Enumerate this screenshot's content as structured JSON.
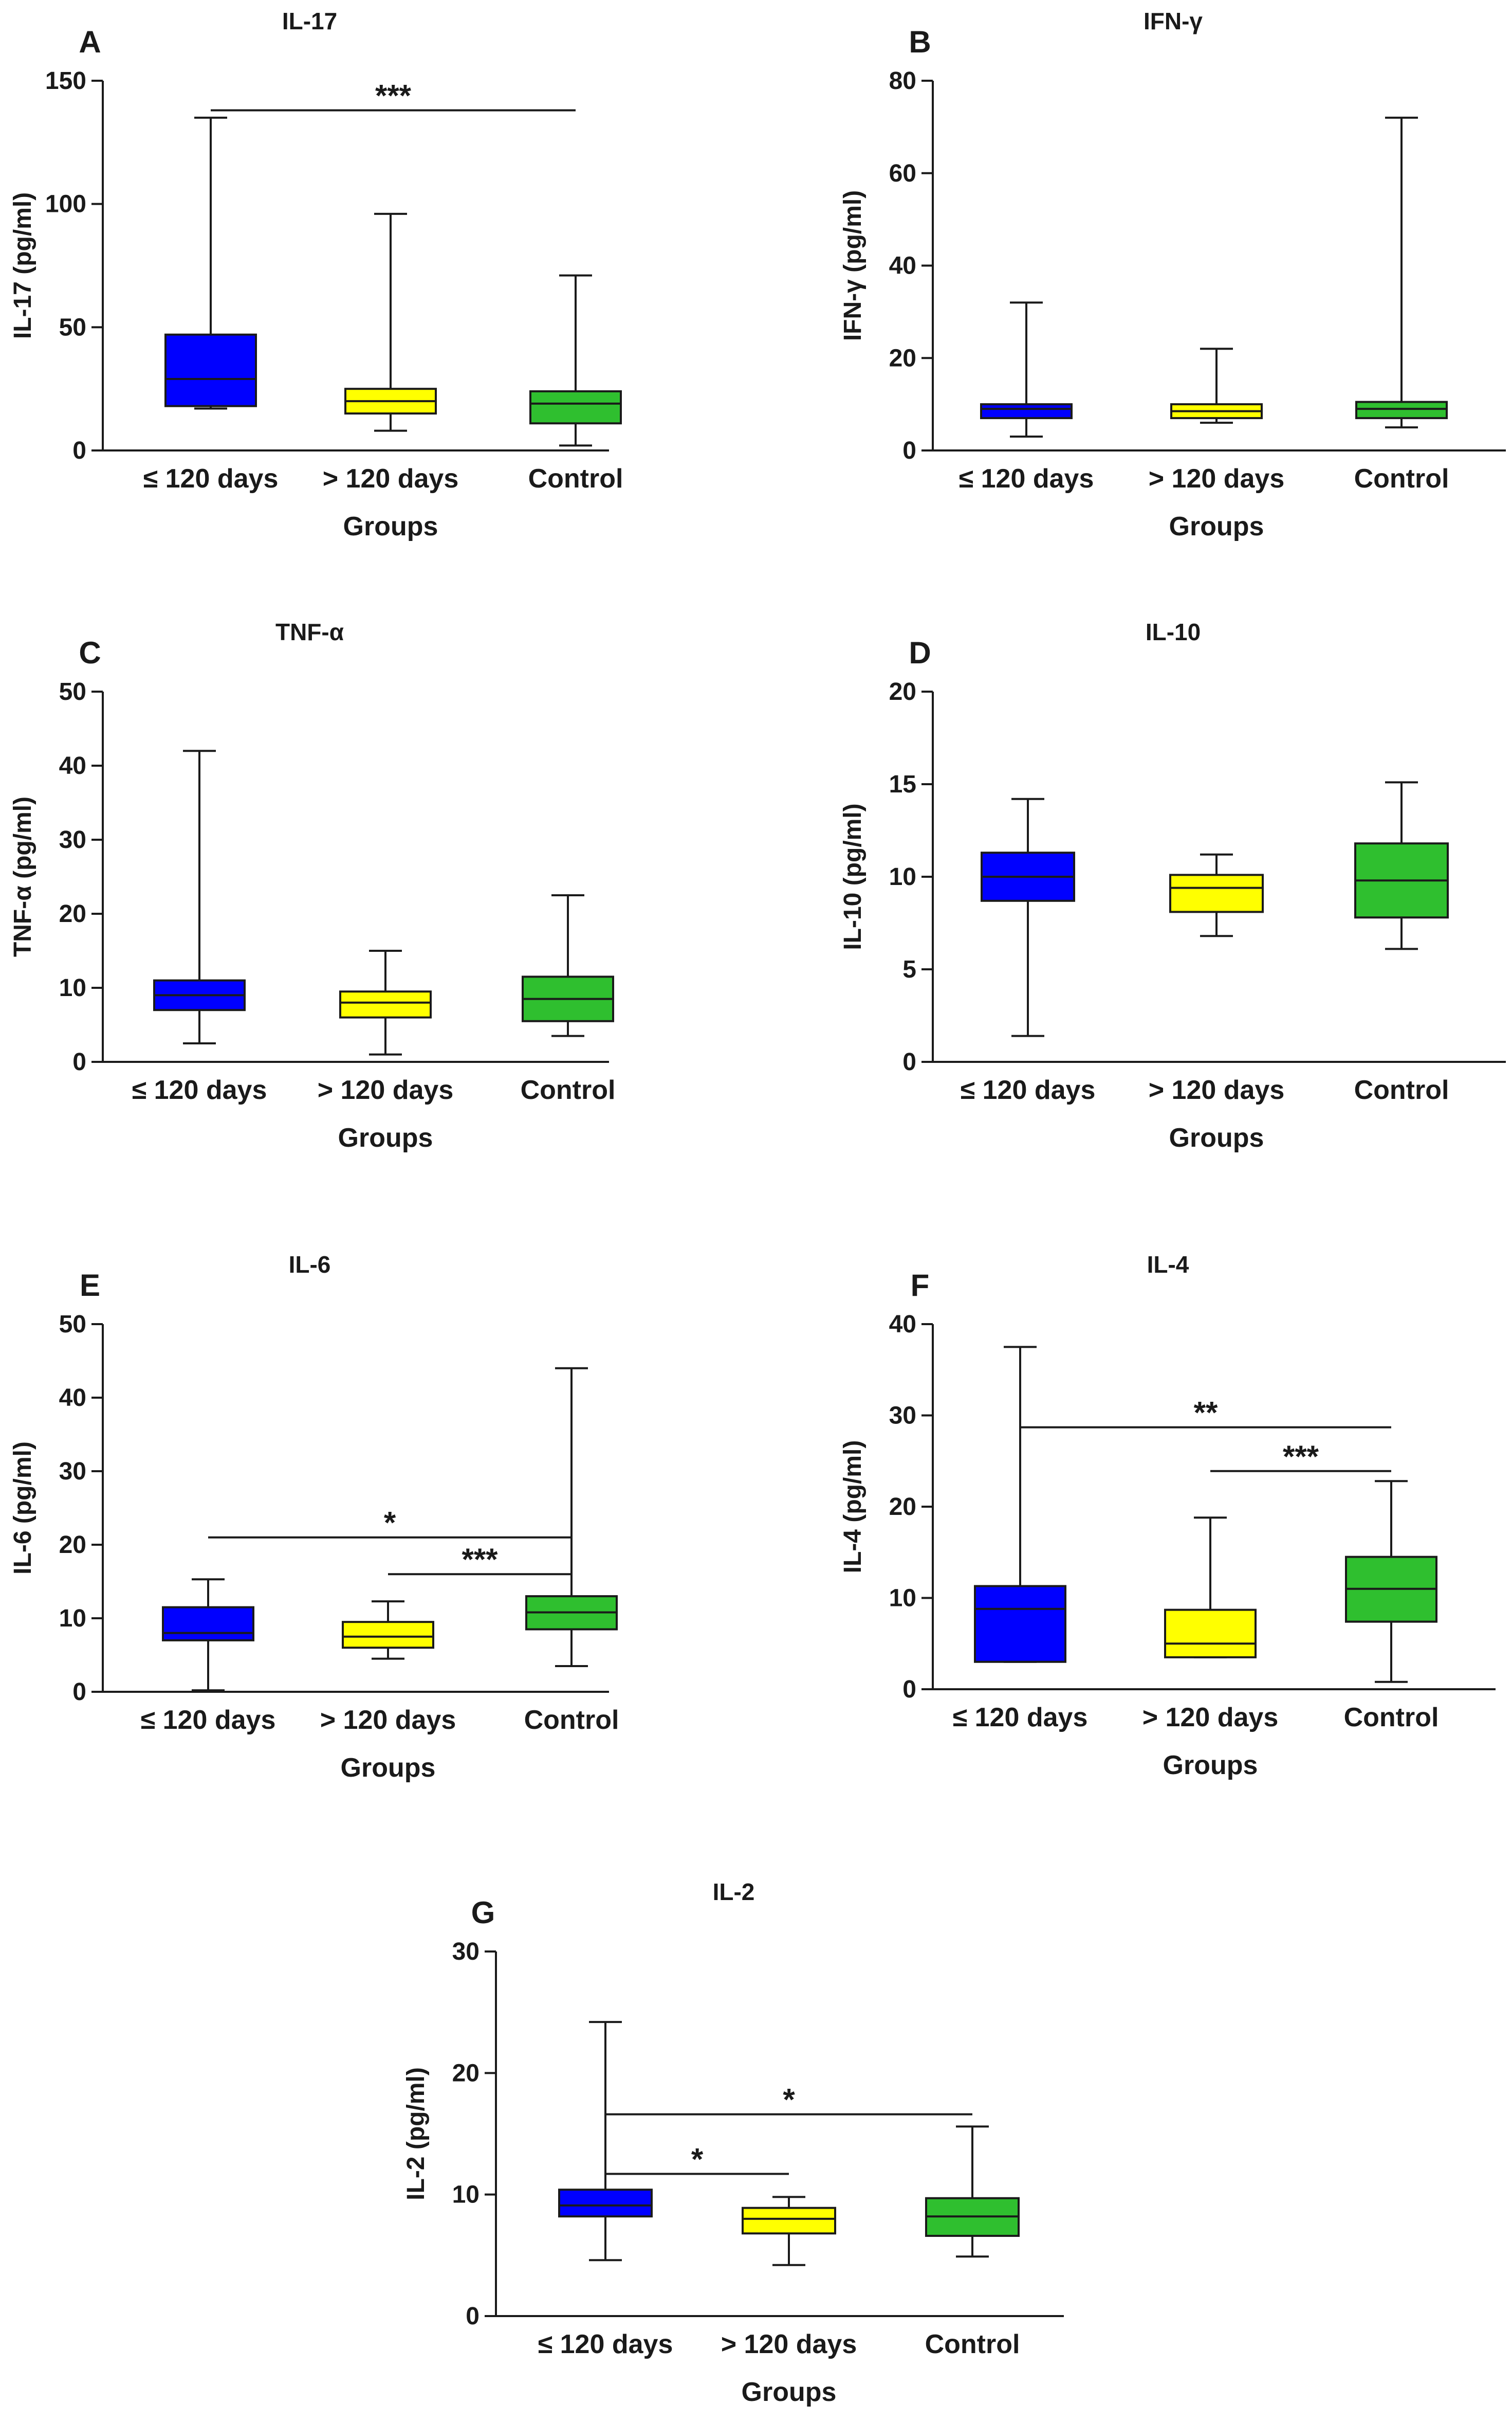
{
  "colors": {
    "le120": "#0000ff",
    "gt120": "#ffff00",
    "control": "#2fbf2f",
    "line": "#1a1a1a"
  },
  "chart_data": [
    {
      "type": "box",
      "letter": "A",
      "title": "IL-17",
      "ylabel": "IL-17 (pg/ml)",
      "xlabel": "Groups",
      "ylim": [
        0,
        150
      ],
      "yticks": [
        "0",
        "50",
        "100",
        "150"
      ],
      "categories": [
        "≤ 120 days",
        "> 120 days",
        "Control"
      ],
      "series": [
        {
          "name": "≤ 120 days",
          "min": 17,
          "q1": 18,
          "median": 29,
          "q3": 47,
          "max": 135
        },
        {
          "name": "> 120 days",
          "min": 8,
          "q1": 15,
          "median": 20,
          "q3": 25,
          "max": 96
        },
        {
          "name": "Control",
          "min": 2,
          "q1": 11,
          "median": 19,
          "q3": 24,
          "max": 71
        }
      ],
      "significance": [
        {
          "from": 0,
          "to": 2,
          "y": 138,
          "label": "***"
        }
      ]
    },
    {
      "type": "box",
      "letter": "B",
      "title": "IFN-γ",
      "ylabel": "IFN-γ (pg/ml)",
      "xlabel": "Groups",
      "ylim": [
        0,
        80
      ],
      "yticks": [
        "0",
        "20",
        "40",
        "60",
        "80"
      ],
      "categories": [
        "≤ 120 days",
        "> 120 days",
        "Control"
      ],
      "series": [
        {
          "name": "≤ 120 days",
          "min": 3,
          "q1": 7,
          "median": 9,
          "q3": 10,
          "max": 32
        },
        {
          "name": "> 120 days",
          "min": 6,
          "q1": 7,
          "median": 8.5,
          "q3": 10,
          "max": 22
        },
        {
          "name": "Control",
          "min": 5,
          "q1": 7,
          "median": 9,
          "q3": 10.5,
          "max": 72
        }
      ],
      "significance": []
    },
    {
      "type": "box",
      "letter": "C",
      "title": "TNF-α",
      "ylabel": "TNF-α (pg/ml)",
      "xlabel": "Groups",
      "ylim": [
        0,
        50
      ],
      "yticks": [
        "0",
        "10",
        "20",
        "30",
        "40",
        "50"
      ],
      "categories": [
        "≤ 120 days",
        "> 120 days",
        "Control"
      ],
      "series": [
        {
          "name": "≤ 120 days",
          "min": 2.5,
          "q1": 7,
          "median": 9,
          "q3": 11,
          "max": 42
        },
        {
          "name": "> 120 days",
          "min": 1,
          "q1": 6,
          "median": 8,
          "q3": 9.5,
          "max": 15
        },
        {
          "name": "Control",
          "min": 3.5,
          "q1": 5.5,
          "median": 8.5,
          "q3": 11.5,
          "max": 22.5
        }
      ],
      "significance": []
    },
    {
      "type": "box",
      "letter": "D",
      "title": "IL-10",
      "ylabel": "IL-10 (pg/ml)",
      "xlabel": "Groups",
      "ylim": [
        0,
        20
      ],
      "yticks": [
        "0",
        "5",
        "10",
        "15",
        "20"
      ],
      "categories": [
        "≤ 120 days",
        "> 120 days",
        "Control"
      ],
      "series": [
        {
          "name": "≤ 120 days",
          "min": 1.4,
          "q1": 8.7,
          "median": 10,
          "q3": 11.3,
          "max": 14.2
        },
        {
          "name": "> 120 days",
          "min": 6.8,
          "q1": 8.1,
          "median": 9.4,
          "q3": 10.1,
          "max": 11.2
        },
        {
          "name": "Control",
          "min": 6.1,
          "q1": 7.8,
          "median": 9.8,
          "q3": 11.8,
          "max": 15.1
        }
      ],
      "significance": []
    },
    {
      "type": "box",
      "letter": "E",
      "title": "IL-6",
      "ylabel": "IL-6 (pg/ml)",
      "xlabel": "Groups",
      "ylim": [
        0,
        50
      ],
      "yticks": [
        "0",
        "10",
        "20",
        "30",
        "40",
        "50"
      ],
      "categories": [
        "≤ 120 days",
        "> 120 days",
        "Control"
      ],
      "series": [
        {
          "name": "≤ 120 days",
          "min": 0.2,
          "q1": 7,
          "median": 8,
          "q3": 11.5,
          "max": 15.3
        },
        {
          "name": "> 120 days",
          "min": 4.5,
          "q1": 6,
          "median": 7.5,
          "q3": 9.5,
          "max": 12.3
        },
        {
          "name": "Control",
          "min": 3.5,
          "q1": 8.5,
          "median": 10.8,
          "q3": 13,
          "max": 44
        }
      ],
      "significance": [
        {
          "from": 0,
          "to": 2,
          "y": 21,
          "label": "*"
        },
        {
          "from": 1,
          "to": 2,
          "y": 16,
          "label": "***"
        }
      ]
    },
    {
      "type": "box",
      "letter": "F",
      "title": "IL-4",
      "ylabel": "IL-4 (pg/ml)",
      "xlabel": "Groups",
      "ylim": [
        0,
        40
      ],
      "yticks": [
        "0",
        "10",
        "20",
        "30",
        "40"
      ],
      "categories": [
        "≤ 120 days",
        "> 120 days",
        "Control"
      ],
      "series": [
        {
          "name": "≤ 120 days",
          "min": 3,
          "q1": 3,
          "median": 8.8,
          "q3": 11.3,
          "max": 37.5
        },
        {
          "name": "> 120 days",
          "min": 3.5,
          "q1": 3.5,
          "median": 5,
          "q3": 8.7,
          "max": 18.8
        },
        {
          "name": "Control",
          "min": 0.8,
          "q1": 7.4,
          "median": 11,
          "q3": 14.5,
          "max": 22.8
        }
      ],
      "significance": [
        {
          "from": 0,
          "to": 2,
          "y": 28.7,
          "label": "**"
        },
        {
          "from": 1,
          "to": 2,
          "y": 23.9,
          "label": "***"
        }
      ]
    },
    {
      "type": "box",
      "letter": "G",
      "title": "IL-2",
      "ylabel": "IL-2 (pg/ml)",
      "xlabel": "Groups",
      "ylim": [
        0,
        30
      ],
      "yticks": [
        "0",
        "10",
        "20",
        "30"
      ],
      "categories": [
        "≤ 120 days",
        "> 120 days",
        "Control"
      ],
      "series": [
        {
          "name": "≤ 120 days",
          "min": 4.6,
          "q1": 8.2,
          "median": 9.1,
          "q3": 10.4,
          "max": 24.2
        },
        {
          "name": "> 120 days",
          "min": 4.2,
          "q1": 6.8,
          "median": 8,
          "q3": 8.9,
          "max": 9.8
        },
        {
          "name": "Control",
          "min": 4.9,
          "q1": 6.6,
          "median": 8.2,
          "q3": 9.7,
          "max": 15.6
        }
      ],
      "significance": [
        {
          "from": 0,
          "to": 2,
          "y": 16.6,
          "label": "*"
        },
        {
          "from": 0,
          "to": 1,
          "y": 11.7,
          "label": "*"
        }
      ]
    }
  ]
}
